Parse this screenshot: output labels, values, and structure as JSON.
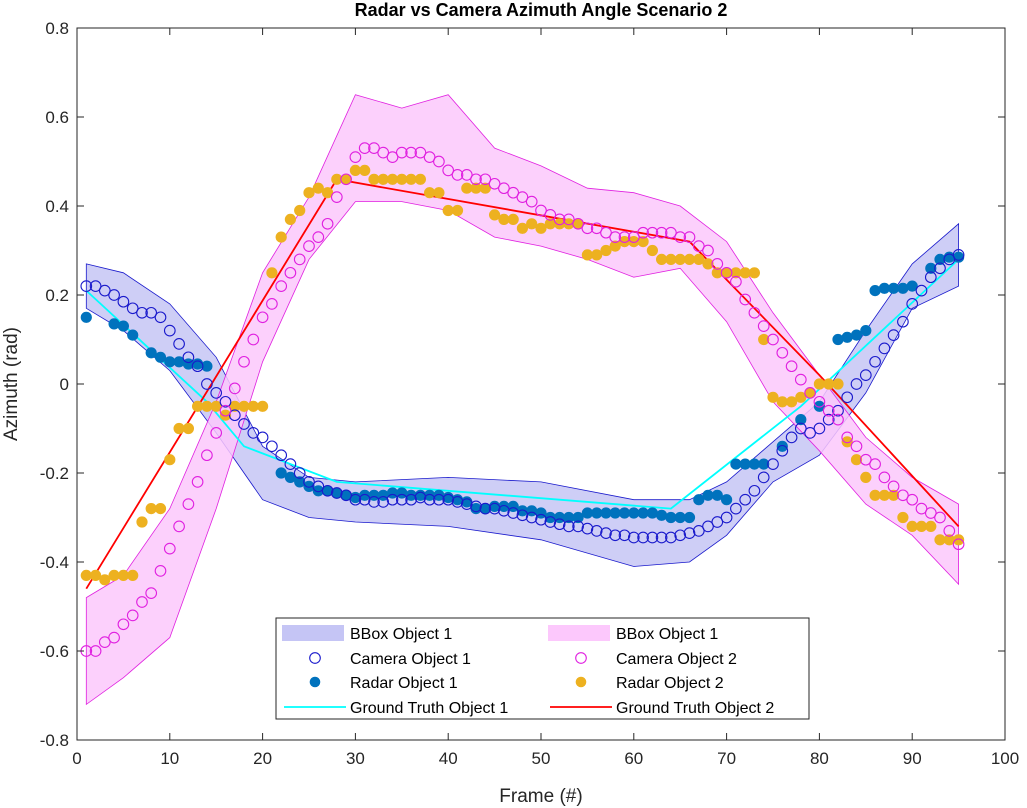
{
  "chart_data": {
    "type": "scatter",
    "title": "Radar vs Camera Azimuth Angle Scenario 2",
    "xlabel": "Frame (#)",
    "ylabel": "Azimuth (rad)",
    "xlim": [
      0,
      100
    ],
    "ylim": [
      -0.8,
      0.8
    ],
    "xticks": [
      0,
      10,
      20,
      30,
      40,
      50,
      60,
      70,
      80,
      90,
      100
    ],
    "yticks": [
      -0.8,
      -0.6,
      -0.4,
      -0.2,
      0,
      0.2,
      0.4,
      0.6,
      0.8
    ],
    "ytick_labels": [
      "-0.8",
      "-0.6",
      "-0.4",
      "-0.2",
      "0",
      "0.2",
      "0.4",
      "0.6",
      "0.8"
    ],
    "grid": false,
    "legend_position": "bottom-center",
    "colors": {
      "bbox1_fill": "#c5c5f5",
      "bbox1_edge": "#1a1acc",
      "bbox2_fill": "#fcc8fc",
      "bbox2_edge": "#e020e0",
      "camera1": "#1a1acc",
      "camera2": "#e020e0",
      "radar1": "#0072bd",
      "radar2": "#edb120",
      "truth1": "#00ffff",
      "truth2": "#ff0000"
    },
    "bbox": [
      {
        "name": "BBox Object 1",
        "x": [
          1,
          5,
          10,
          15,
          20,
          25,
          30,
          40,
          50,
          60,
          66,
          70,
          75,
          80,
          85,
          90,
          95
        ],
        "upper": [
          0.27,
          0.25,
          0.18,
          0.06,
          -0.14,
          -0.21,
          -0.22,
          -0.21,
          -0.22,
          -0.26,
          -0.26,
          -0.22,
          -0.13,
          -0.04,
          0.12,
          0.27,
          0.36
        ],
        "lower": [
          0.17,
          0.12,
          0.03,
          -0.11,
          -0.26,
          -0.3,
          -0.31,
          -0.32,
          -0.35,
          -0.41,
          -0.4,
          -0.34,
          -0.22,
          -0.16,
          -0.02,
          0.17,
          0.22
        ]
      },
      {
        "name": "BBox Object 1",
        "x": [
          1,
          5,
          10,
          15,
          20,
          25,
          30,
          35,
          40,
          45,
          50,
          55,
          60,
          65,
          70,
          75,
          80,
          85,
          90,
          95
        ],
        "upper": [
          -0.48,
          -0.43,
          -0.28,
          -0.04,
          0.25,
          0.42,
          0.65,
          0.62,
          0.65,
          0.53,
          0.49,
          0.44,
          0.43,
          0.4,
          0.32,
          0.16,
          0.02,
          -0.12,
          -0.21,
          -0.27
        ],
        "lower": [
          -0.72,
          -0.66,
          -0.57,
          -0.28,
          0.05,
          0.28,
          0.41,
          0.41,
          0.39,
          0.33,
          0.31,
          0.28,
          0.24,
          0.26,
          0.14,
          -0.04,
          -0.15,
          -0.27,
          -0.34,
          -0.45
        ]
      }
    ],
    "series": [
      {
        "name": "Camera Object 1",
        "marker": "open-circle",
        "x": [
          1,
          2,
          3,
          4,
          5,
          6,
          7,
          8,
          9,
          10,
          11,
          12,
          13,
          14,
          15,
          16,
          17,
          18,
          19,
          20,
          21,
          22,
          23,
          24,
          25,
          26,
          27,
          28,
          29,
          30,
          31,
          32,
          33,
          34,
          35,
          36,
          37,
          38,
          39,
          40,
          41,
          42,
          43,
          44,
          45,
          46,
          47,
          48,
          49,
          50,
          51,
          52,
          53,
          54,
          55,
          56,
          57,
          58,
          59,
          60,
          61,
          62,
          63,
          64,
          65,
          66,
          67,
          68,
          69,
          70,
          71,
          72,
          73,
          74,
          75,
          76,
          77,
          78,
          79,
          80,
          81,
          82,
          83,
          84,
          85,
          86,
          87,
          88,
          89,
          90,
          91,
          92,
          93,
          94,
          95
        ],
        "y": [
          0.22,
          0.22,
          0.21,
          0.2,
          0.185,
          0.17,
          0.16,
          0.16,
          0.15,
          0.12,
          0.09,
          0.06,
          0.04,
          0.0,
          -0.02,
          -0.04,
          -0.07,
          -0.09,
          -0.11,
          -0.12,
          -0.14,
          -0.16,
          -0.18,
          -0.2,
          -0.22,
          -0.23,
          -0.24,
          -0.245,
          -0.25,
          -0.26,
          -0.26,
          -0.265,
          -0.265,
          -0.26,
          -0.26,
          -0.26,
          -0.255,
          -0.26,
          -0.26,
          -0.26,
          -0.265,
          -0.27,
          -0.275,
          -0.28,
          -0.28,
          -0.285,
          -0.29,
          -0.295,
          -0.3,
          -0.305,
          -0.31,
          -0.315,
          -0.32,
          -0.32,
          -0.325,
          -0.33,
          -0.335,
          -0.34,
          -0.34,
          -0.345,
          -0.345,
          -0.345,
          -0.345,
          -0.345,
          -0.34,
          -0.335,
          -0.33,
          -0.32,
          -0.31,
          -0.3,
          -0.28,
          -0.26,
          -0.24,
          -0.21,
          -0.18,
          -0.15,
          -0.12,
          -0.1,
          -0.11,
          -0.1,
          -0.08,
          -0.06,
          -0.03,
          0.0,
          0.02,
          0.05,
          0.08,
          0.11,
          0.14,
          0.18,
          0.21,
          0.24,
          0.26,
          0.28,
          0.29
        ]
      },
      {
        "name": "Camera Object 2",
        "marker": "open-circle",
        "x": [
          1,
          2,
          3,
          4,
          5,
          6,
          7,
          8,
          9,
          10,
          11,
          12,
          13,
          14,
          15,
          16,
          17,
          18,
          19,
          20,
          21,
          22,
          23,
          24,
          25,
          26,
          27,
          28,
          29,
          30,
          31,
          32,
          33,
          34,
          35,
          36,
          37,
          38,
          39,
          40,
          41,
          42,
          43,
          44,
          45,
          46,
          47,
          48,
          49,
          50,
          51,
          52,
          53,
          54,
          55,
          56,
          57,
          58,
          59,
          60,
          61,
          62,
          63,
          64,
          65,
          66,
          67,
          68,
          69,
          70,
          71,
          72,
          73,
          74,
          75,
          76,
          77,
          78,
          79,
          80,
          81,
          82,
          83,
          84,
          85,
          86,
          87,
          88,
          89,
          90,
          91,
          92,
          93,
          94,
          95
        ],
        "y": [
          -0.6,
          -0.6,
          -0.58,
          -0.57,
          -0.54,
          -0.52,
          -0.49,
          -0.47,
          -0.42,
          -0.37,
          -0.32,
          -0.27,
          -0.22,
          -0.16,
          -0.11,
          -0.06,
          -0.01,
          0.05,
          0.1,
          0.15,
          0.18,
          0.22,
          0.25,
          0.28,
          0.31,
          0.33,
          0.36,
          0.42,
          0.46,
          0.51,
          0.53,
          0.53,
          0.52,
          0.51,
          0.52,
          0.52,
          0.52,
          0.51,
          0.5,
          0.48,
          0.47,
          0.47,
          0.46,
          0.46,
          0.45,
          0.44,
          0.43,
          0.42,
          0.41,
          0.39,
          0.38,
          0.37,
          0.37,
          0.36,
          0.35,
          0.35,
          0.34,
          0.33,
          0.33,
          0.33,
          0.34,
          0.34,
          0.34,
          0.34,
          0.33,
          0.33,
          0.31,
          0.3,
          0.27,
          0.25,
          0.23,
          0.19,
          0.16,
          0.13,
          0.1,
          0.07,
          0.04,
          0.01,
          -0.02,
          -0.04,
          -0.06,
          -0.08,
          -0.12,
          -0.14,
          -0.17,
          -0.18,
          -0.21,
          -0.23,
          -0.25,
          -0.26,
          -0.28,
          -0.29,
          -0.3,
          -0.33,
          -0.36
        ]
      },
      {
        "name": "Radar Object 1",
        "marker": "filled-circle",
        "x": [
          1,
          4,
          5,
          6,
          8,
          9,
          10,
          11,
          12,
          13,
          14,
          22,
          23,
          24,
          25,
          26,
          27,
          28,
          29,
          30,
          31,
          32,
          33,
          34,
          35,
          36,
          37,
          38,
          39,
          40,
          41,
          42,
          43,
          44,
          45,
          46,
          47,
          48,
          49,
          50,
          51,
          52,
          53,
          54,
          55,
          56,
          57,
          58,
          59,
          60,
          61,
          62,
          63,
          64,
          65,
          66,
          67,
          68,
          69,
          70,
          71,
          72,
          73,
          74,
          76,
          78,
          80,
          82,
          83,
          84,
          85,
          86,
          87,
          88,
          89,
          90,
          92,
          93,
          94,
          95
        ],
        "y": [
          0.15,
          0.135,
          0.13,
          0.11,
          0.07,
          0.06,
          0.05,
          0.05,
          0.045,
          0.045,
          0.04,
          -0.2,
          -0.21,
          -0.22,
          -0.23,
          -0.24,
          -0.24,
          -0.245,
          -0.25,
          -0.255,
          -0.25,
          -0.25,
          -0.25,
          -0.245,
          -0.245,
          -0.25,
          -0.25,
          -0.25,
          -0.25,
          -0.255,
          -0.26,
          -0.265,
          -0.28,
          -0.28,
          -0.275,
          -0.275,
          -0.275,
          -0.285,
          -0.285,
          -0.29,
          -0.3,
          -0.3,
          -0.3,
          -0.3,
          -0.29,
          -0.29,
          -0.29,
          -0.29,
          -0.29,
          -0.29,
          -0.29,
          -0.29,
          -0.295,
          -0.3,
          -0.3,
          -0.3,
          -0.26,
          -0.25,
          -0.25,
          -0.26,
          -0.18,
          -0.18,
          -0.18,
          -0.18,
          -0.14,
          -0.08,
          -0.05,
          0.1,
          0.105,
          0.11,
          0.12,
          0.21,
          0.215,
          0.215,
          0.215,
          0.22,
          0.26,
          0.28,
          0.285,
          0.285
        ]
      },
      {
        "name": "Radar Object 2",
        "marker": "filled-circle",
        "x": [
          1,
          2,
          3,
          4,
          5,
          6,
          7,
          8,
          9,
          10,
          11,
          12,
          13,
          14,
          15,
          16,
          17,
          18,
          19,
          20,
          21,
          22,
          23,
          24,
          25,
          26,
          27,
          28,
          29,
          30,
          31,
          32,
          33,
          34,
          35,
          36,
          37,
          38,
          39,
          40,
          41,
          42,
          43,
          44,
          45,
          46,
          47,
          48,
          49,
          50,
          51,
          52,
          53,
          54,
          55,
          56,
          57,
          58,
          59,
          60,
          61,
          62,
          63,
          64,
          65,
          66,
          67,
          68,
          69,
          70,
          71,
          72,
          73,
          74,
          75,
          76,
          77,
          78,
          79,
          80,
          81,
          82,
          83,
          84,
          85,
          86,
          87,
          88,
          89,
          90,
          91,
          92,
          93,
          94,
          95
        ],
        "y": [
          -0.43,
          -0.43,
          -0.44,
          -0.43,
          -0.43,
          -0.43,
          -0.31,
          -0.28,
          -0.28,
          -0.17,
          -0.1,
          -0.1,
          -0.05,
          -0.05,
          -0.05,
          -0.07,
          -0.05,
          -0.05,
          -0.05,
          -0.05,
          0.25,
          0.33,
          0.37,
          0.39,
          0.43,
          0.44,
          0.43,
          0.46,
          0.46,
          0.48,
          0.48,
          0.46,
          0.46,
          0.46,
          0.46,
          0.46,
          0.46,
          0.43,
          0.43,
          0.39,
          0.39,
          0.44,
          0.44,
          0.44,
          0.38,
          0.37,
          0.37,
          0.35,
          0.36,
          0.35,
          0.36,
          0.36,
          0.36,
          0.36,
          0.29,
          0.29,
          0.3,
          0.31,
          0.32,
          0.32,
          0.32,
          0.3,
          0.28,
          0.28,
          0.28,
          0.28,
          0.28,
          0.27,
          0.25,
          0.25,
          0.25,
          0.25,
          0.25,
          0.1,
          -0.03,
          -0.04,
          -0.04,
          -0.03,
          -0.02,
          0.0,
          0.0,
          0.0,
          -0.13,
          -0.17,
          -0.21,
          -0.25,
          -0.25,
          -0.25,
          -0.3,
          -0.32,
          -0.32,
          -0.32,
          -0.35,
          -0.35,
          -0.35
        ]
      },
      {
        "name": "Ground Truth Object 1",
        "marker": "line",
        "x": [
          1,
          14,
          18,
          28,
          64,
          78,
          95
        ],
        "y": [
          0.21,
          -0.04,
          -0.14,
          -0.22,
          -0.28,
          -0.05,
          0.28
        ]
      },
      {
        "name": "Ground Truth Object 2",
        "marker": "line",
        "x": [
          1,
          28,
          66,
          80,
          95
        ],
        "y": [
          -0.46,
          0.46,
          0.32,
          0.02,
          -0.32
        ]
      }
    ],
    "legend": [
      "BBox Object 1",
      "BBox Object 1",
      "Camera Object 1",
      "Camera Object 2",
      "Radar Object 1",
      "Radar Object 2",
      "Ground Truth Object 1",
      "Ground Truth Object 2"
    ]
  }
}
